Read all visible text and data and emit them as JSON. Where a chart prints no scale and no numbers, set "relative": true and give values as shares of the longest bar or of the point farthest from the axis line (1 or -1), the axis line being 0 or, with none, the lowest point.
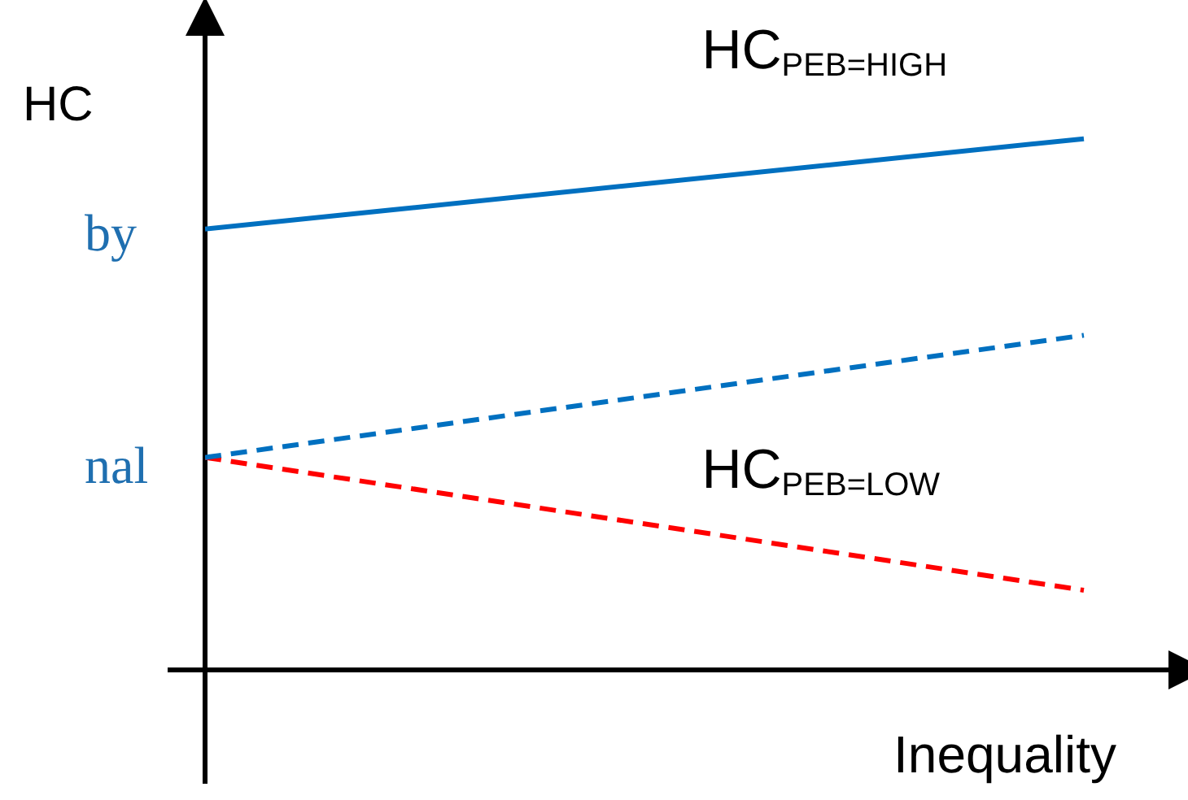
{
  "chart_data": {
    "type": "line",
    "relative": true,
    "xlabel": "Inequality",
    "ylabel": "HC",
    "annotations": [
      "by",
      "nal"
    ],
    "categories": [
      null,
      null
    ],
    "legend": false,
    "grid": false,
    "marker": "none",
    "series": [
      {
        "name": "HC$_{PEB=HIGH}$",
        "color": "#0070c0",
        "values": [
          0.83,
          1
        ],
        "line_style": "solid"
      },
      {
        "color": "#0070c0",
        "values": [
          0.4,
          0.63
        ],
        "line_style": "dashed"
      },
      {
        "name": "HC$_{PEB=LOW}$",
        "color": "#ff0000",
        "values": [
          0.4,
          0.15
        ],
        "line_style": "dashed"
      }
    ]
  }
}
